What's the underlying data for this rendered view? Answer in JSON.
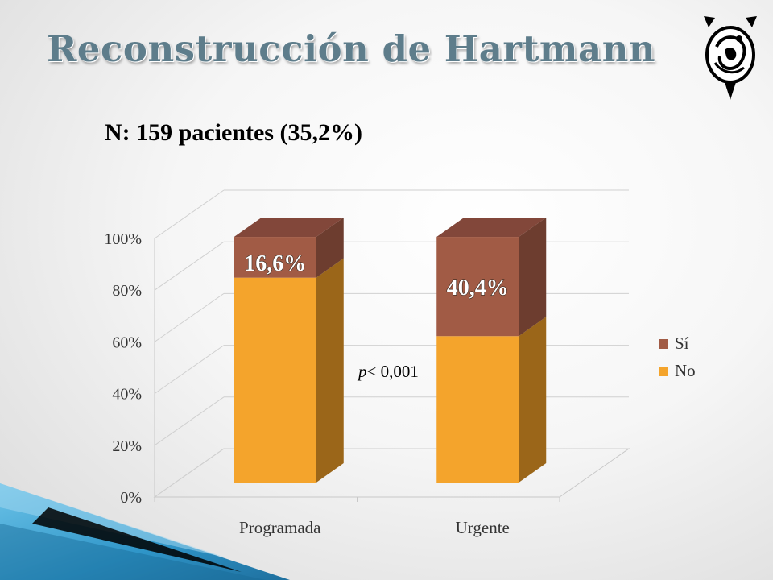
{
  "slide": {
    "title": "Reconstrucción de Hartmann",
    "subtitle": "N: 159 pacientes (35,2%)"
  },
  "colors": {
    "title": "#5e7d8b",
    "no_front": "#f4a42c",
    "no_side": "#9b6619",
    "no_top": "#c88421",
    "si_front": "#a15b45",
    "si_side": "#6d3d2f",
    "si_top": "#82473a",
    "accent": "#2f95c8"
  },
  "logo": {
    "icon": "society-emblem-icon"
  },
  "chart_data": {
    "type": "bar",
    "stacked": true,
    "style": "3d-column",
    "categories": [
      "Programada",
      "Urgente"
    ],
    "series": [
      {
        "name": "No",
        "values": [
          83.4,
          59.6
        ]
      },
      {
        "name": "Sí",
        "values": [
          16.6,
          40.4
        ]
      }
    ],
    "data_labels": [
      "16,6%",
      "40,4%"
    ],
    "yticks": [
      "0%",
      "20%",
      "40%",
      "60%",
      "80%",
      "100%"
    ],
    "ylim": [
      0,
      100
    ],
    "grid": true,
    "legend": {
      "position": "right",
      "items": [
        "Sí",
        "No"
      ]
    },
    "annotation": {
      "prefix": "p",
      "text": "< 0,001"
    }
  }
}
